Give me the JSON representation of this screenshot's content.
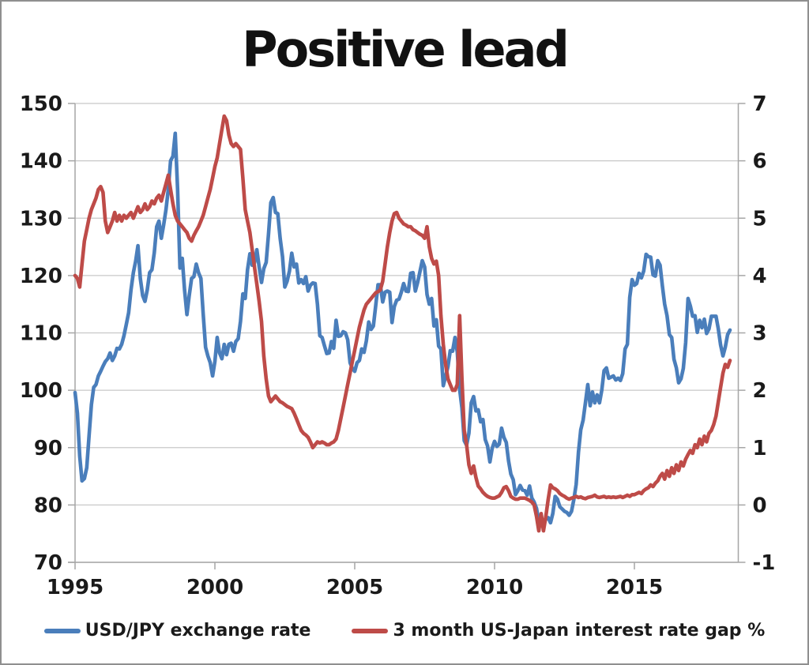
{
  "title": "Positive lead",
  "legend": {
    "items": [
      {
        "label": "USD/JPY exchange rate",
        "color": "#4A7EBB"
      },
      {
        "label": "3 month US-Japan interest rate gap %",
        "color": "#BE4B48"
      }
    ]
  },
  "chart_data": {
    "type": "line",
    "title": "Positive lead",
    "xlabel": "",
    "ylabel_left": "",
    "ylabel_right": "",
    "grid": "horizontal",
    "legend_position": "bottom",
    "x_start_year": 1995,
    "x_step_months": 1,
    "x_end_approx": 2018.4,
    "x_tick_years": [
      1995,
      2000,
      2005,
      2010,
      2015
    ],
    "left_axis": {
      "min": 70,
      "max": 150,
      "ticks": [
        150,
        140,
        130,
        120,
        110,
        100,
        90,
        80,
        70
      ]
    },
    "right_axis": {
      "min": -1,
      "max": 7,
      "ticks": [
        7,
        6,
        5,
        4,
        3,
        2,
        1,
        0,
        -1
      ]
    },
    "series": [
      {
        "name": "USD/JPY exchange rate",
        "axis": "left",
        "color": "#4A7EBB",
        "values": [
          99.6,
          96.0,
          88.5,
          84.2,
          84.6,
          86.5,
          92.0,
          97.5,
          100.5,
          101.0,
          102.5,
          103.3,
          104.2,
          105.0,
          105.5,
          106.5,
          105.2,
          106.0,
          107.3,
          107.2,
          108.0,
          109.5,
          111.5,
          113.5,
          117.5,
          120.5,
          122.5,
          125.2,
          119.5,
          116.5,
          115.5,
          117.5,
          120.5,
          121.0,
          124.0,
          128.5,
          129.5,
          126.5,
          128.8,
          131.5,
          135.0,
          140.0,
          140.8,
          144.8,
          135.0,
          121.3,
          123.0,
          117.5,
          113.2,
          116.5,
          119.5,
          119.8,
          122.0,
          120.5,
          119.5,
          113.3,
          107.5,
          106.0,
          104.8,
          102.5,
          105.0,
          109.2,
          106.5,
          105.5,
          108.0,
          106.2,
          108.0,
          108.2,
          106.8,
          108.5,
          109.0,
          112.0,
          116.8,
          116.0,
          121.0,
          123.8,
          121.8,
          122.2,
          124.5,
          121.5,
          118.8,
          121.2,
          122.3,
          127.3,
          132.7,
          133.6,
          131.0,
          130.8,
          126.5,
          123.3,
          118.0,
          119.0,
          120.8,
          123.9,
          121.5,
          122.0,
          118.7,
          119.3,
          118.6,
          119.8,
          117.3,
          118.3,
          118.7,
          118.6,
          115.0,
          109.5,
          109.2,
          107.8,
          106.4,
          106.5,
          108.5,
          107.3,
          112.2,
          109.4,
          109.5,
          110.2,
          110.0,
          108.8,
          104.8,
          103.8,
          103.3,
          104.8,
          105.2,
          107.2,
          106.6,
          108.6,
          111.9,
          110.6,
          111.2,
          114.8,
          118.4,
          118.4,
          115.4,
          117.1,
          117.3,
          117.1,
          111.8,
          114.6,
          115.7,
          115.9,
          117.1,
          118.6,
          117.3,
          117.2,
          120.4,
          120.5,
          117.3,
          118.8,
          120.7,
          122.6,
          121.5,
          116.7,
          115.0,
          116.0,
          111.2,
          112.3,
          107.7,
          107.2,
          100.8,
          102.4,
          104.1,
          106.9,
          106.8,
          109.2,
          106.7,
          100.2,
          96.9,
          91.2,
          90.4,
          92.5,
          97.8,
          98.9,
          96.4,
          96.6,
          94.5,
          94.9,
          91.4,
          90.3,
          87.5,
          89.9,
          91.1,
          90.2,
          90.6,
          93.4,
          91.8,
          90.9,
          87.7,
          85.4,
          84.4,
          81.8,
          82.5,
          83.4,
          82.6,
          82.5,
          81.7,
          83.3,
          81.2,
          80.5,
          79.4,
          77.1,
          76.8,
          76.7,
          77.5,
          77.8,
          76.9,
          78.5,
          81.5,
          81.0,
          79.7,
          79.3,
          78.9,
          78.7,
          78.2,
          78.9,
          80.9,
          83.6,
          89.2,
          93.1,
          94.8,
          97.8,
          101.0,
          97.3,
          99.7,
          97.8,
          99.2,
          97.8,
          100.0,
          103.4,
          103.9,
          102.1,
          102.3,
          102.5,
          101.8,
          102.1,
          101.7,
          102.9,
          107.2,
          108.0,
          116.2,
          119.3,
          118.3,
          118.6,
          120.4,
          119.6,
          120.8,
          123.7,
          123.3,
          123.2,
          120.1,
          119.9,
          122.6,
          121.8,
          118.2,
          115.0,
          113.0,
          109.7,
          109.2,
          105.4,
          103.9,
          101.3,
          102.0,
          103.8,
          108.3,
          116.0,
          114.7,
          112.9,
          113.0,
          110.1,
          112.2,
          110.9,
          112.4,
          109.9,
          110.7,
          112.9,
          112.9,
          112.9,
          110.7,
          107.9,
          106.0,
          107.5,
          109.7,
          110.5
        ]
      },
      {
        "name": "3 month US-Japan interest rate gap %",
        "axis": "right",
        "color": "#BE4B48",
        "values": [
          4.0,
          3.95,
          3.8,
          4.2,
          4.6,
          4.8,
          5.0,
          5.15,
          5.25,
          5.35,
          5.5,
          5.55,
          5.45,
          4.95,
          4.75,
          4.85,
          4.95,
          5.1,
          4.95,
          5.05,
          4.95,
          5.05,
          5.0,
          5.05,
          5.1,
          5.0,
          5.1,
          5.2,
          5.1,
          5.15,
          5.25,
          5.15,
          5.2,
          5.3,
          5.25,
          5.35,
          5.4,
          5.3,
          5.45,
          5.6,
          5.75,
          5.5,
          5.25,
          5.05,
          4.95,
          4.9,
          4.85,
          4.8,
          4.75,
          4.65,
          4.6,
          4.7,
          4.78,
          4.85,
          4.95,
          5.05,
          5.2,
          5.35,
          5.5,
          5.7,
          5.9,
          6.05,
          6.3,
          6.55,
          6.78,
          6.7,
          6.45,
          6.3,
          6.25,
          6.3,
          6.25,
          6.2,
          5.7,
          5.15,
          4.95,
          4.75,
          4.45,
          4.15,
          3.85,
          3.55,
          3.2,
          2.6,
          2.2,
          1.9,
          1.8,
          1.85,
          1.9,
          1.85,
          1.8,
          1.78,
          1.75,
          1.72,
          1.7,
          1.68,
          1.6,
          1.5,
          1.4,
          1.3,
          1.25,
          1.22,
          1.18,
          1.1,
          1.0,
          1.05,
          1.1,
          1.08,
          1.1,
          1.08,
          1.05,
          1.05,
          1.08,
          1.1,
          1.15,
          1.3,
          1.5,
          1.7,
          1.9,
          2.1,
          2.3,
          2.5,
          2.7,
          2.9,
          3.1,
          3.25,
          3.4,
          3.5,
          3.55,
          3.6,
          3.65,
          3.7,
          3.72,
          3.75,
          3.9,
          4.2,
          4.5,
          4.75,
          4.95,
          5.08,
          5.1,
          5.0,
          4.95,
          4.9,
          4.88,
          4.85,
          4.85,
          4.8,
          4.78,
          4.75,
          4.72,
          4.7,
          4.65,
          4.85,
          4.5,
          4.3,
          4.2,
          4.25,
          4.0,
          3.3,
          2.8,
          2.45,
          2.2,
          2.1,
          2.0,
          2.0,
          2.1,
          3.3,
          2.2,
          1.3,
          1.05,
          0.7,
          0.55,
          0.68,
          0.48,
          0.33,
          0.28,
          0.22,
          0.18,
          0.15,
          0.13,
          0.12,
          0.12,
          0.14,
          0.16,
          0.22,
          0.3,
          0.32,
          0.25,
          0.15,
          0.12,
          0.1,
          0.1,
          0.12,
          0.12,
          0.12,
          0.1,
          0.08,
          0.05,
          0.0,
          -0.2,
          -0.45,
          -0.15,
          -0.45,
          -0.2,
          0.1,
          0.35,
          0.3,
          0.28,
          0.25,
          0.2,
          0.17,
          0.15,
          0.12,
          0.1,
          0.12,
          0.13,
          0.15,
          0.13,
          0.14,
          0.12,
          0.11,
          0.13,
          0.14,
          0.15,
          0.17,
          0.14,
          0.13,
          0.14,
          0.15,
          0.13,
          0.14,
          0.13,
          0.14,
          0.13,
          0.14,
          0.15,
          0.13,
          0.15,
          0.17,
          0.15,
          0.18,
          0.18,
          0.2,
          0.22,
          0.2,
          0.25,
          0.28,
          0.3,
          0.35,
          0.32,
          0.38,
          0.42,
          0.5,
          0.55,
          0.45,
          0.6,
          0.5,
          0.65,
          0.55,
          0.7,
          0.6,
          0.75,
          0.68,
          0.8,
          0.88,
          0.95,
          0.9,
          1.05,
          1.0,
          1.15,
          1.05,
          1.2,
          1.1,
          1.25,
          1.3,
          1.4,
          1.55,
          1.8,
          2.05,
          2.3,
          2.45,
          2.4,
          2.52
        ]
      }
    ]
  },
  "colors": {
    "blue_series": "#4A7EBB",
    "red_series": "#BE4B48",
    "gridline": "#c8c8c8",
    "axis_line": "#a6a6a6",
    "text": "#1a1a1a",
    "background": "#ffffff"
  }
}
